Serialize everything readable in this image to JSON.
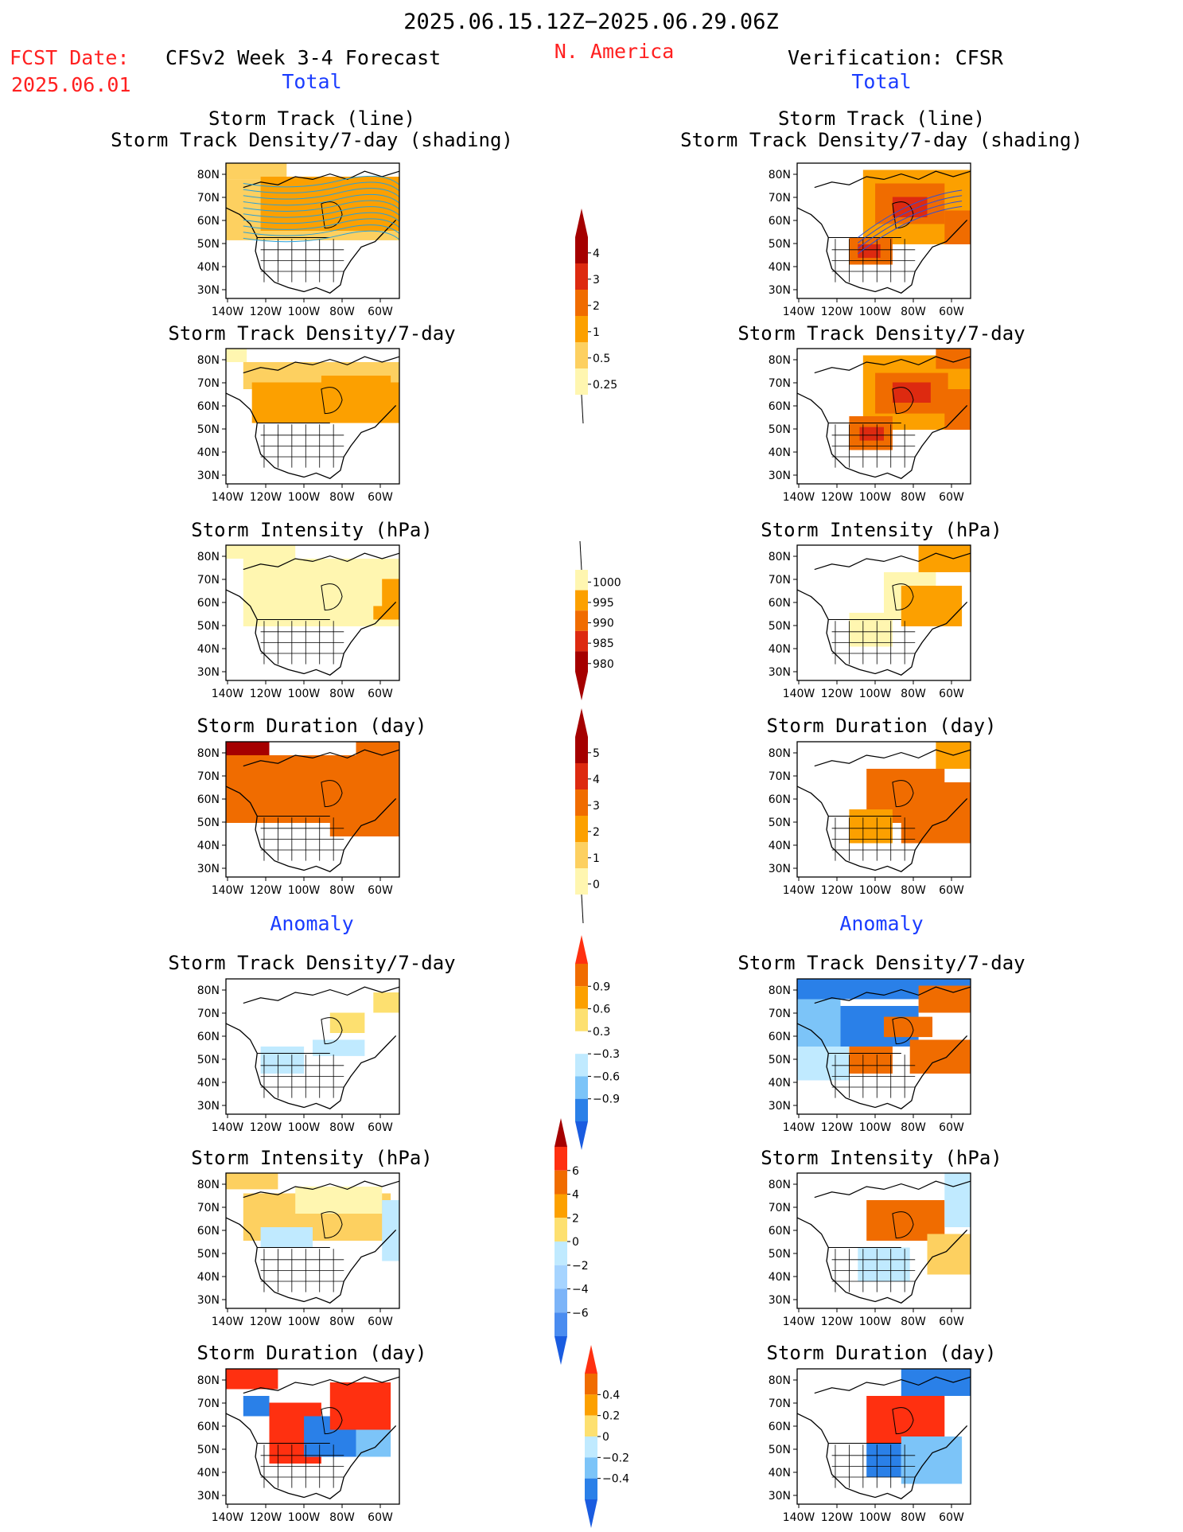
{
  "header": {
    "date_range": "2025.06.15.12Z−2025.06.29.06Z",
    "fcst_label": "FCST Date:",
    "fcst_date": "2025.06.01",
    "model_title": "CFSv2 Week 3-4 Forecast",
    "region": "N. America",
    "verification": "Verification: CFSR"
  },
  "sections": {
    "total": "Total",
    "anomaly": "Anomaly"
  },
  "axes": {
    "lat_ticks": [
      "80N",
      "70N",
      "60N",
      "50N",
      "40N",
      "30N"
    ],
    "lon_ticks": [
      "140W",
      "120W",
      "100W",
      "80W",
      "60W"
    ]
  },
  "panels": [
    {
      "row": 0,
      "title1": "Storm Track (line)",
      "title2": "Storm Track Density/7-day (shading)"
    },
    {
      "row": 1,
      "title1": "Storm Track Density/7-day",
      "title2": ""
    },
    {
      "row": 2,
      "title1": "Storm Intensity (hPa)",
      "title2": ""
    },
    {
      "row": 3,
      "title1": "Storm Duration (day)",
      "title2": ""
    },
    {
      "row": 4,
      "title1": "Storm Track Density/7-day",
      "title2": ""
    },
    {
      "row": 5,
      "title1": "Storm Intensity (hPa)",
      "title2": ""
    },
    {
      "row": 6,
      "title1": "Storm Duration (day)",
      "title2": ""
    }
  ],
  "colorbars": [
    {
      "name": "density-total",
      "labels": [
        "4",
        "3",
        "2",
        "1",
        "0.5",
        "0.25"
      ],
      "colors": [
        "#a50000",
        "#dd2a10",
        "#f06c00",
        "#fca000",
        "#fdd060",
        "#fff6b0"
      ],
      "arrow_top": "#a50000",
      "arrow_bottom": "none"
    },
    {
      "name": "intensity-total",
      "labels": [
        "1000",
        "995",
        "990",
        "985",
        "980"
      ],
      "colors": [
        "#fff6b0",
        "#fca000",
        "#f06c00",
        "#dd2a10",
        "#a50000"
      ],
      "arrow_top": "none",
      "arrow_bottom": "#a50000"
    },
    {
      "name": "duration-total",
      "labels": [
        "5",
        "4",
        "3",
        "2",
        "1",
        "0"
      ],
      "colors": [
        "#a50000",
        "#dd2a10",
        "#f06c00",
        "#fca000",
        "#fdd060",
        "#fff6b0"
      ],
      "arrow_top": "#a50000",
      "arrow_bottom": "none"
    },
    {
      "name": "density-anom",
      "labels": [
        "0.9",
        "0.6",
        "0.3",
        "−0.3",
        "−0.6",
        "−0.9"
      ],
      "colors": [
        "#f06c00",
        "#fca000",
        "#fde070",
        "#ffffff",
        "#c0eaff",
        "#7cc4f8",
        "#2a80e8"
      ],
      "arrow_top": "#ff3010",
      "arrow_bottom": "#1a5ce0"
    },
    {
      "name": "intensity-anom",
      "labels": [
        "6",
        "4",
        "2",
        "0",
        "−2",
        "−4",
        "−6"
      ],
      "colors": [
        "#ff3010",
        "#f06c00",
        "#fca000",
        "#fde070",
        "#c0eaff",
        "#a6d4ff",
        "#7cb4f8",
        "#4a8cf0"
      ],
      "arrow_top": "#a50000",
      "arrow_bottom": "#1a5ce0"
    },
    {
      "name": "duration-anom",
      "labels": [
        "0.4",
        "0.2",
        "0",
        "−0.2",
        "−0.4"
      ],
      "colors": [
        "#f06c00",
        "#fca000",
        "#fde070",
        "#c0eaff",
        "#7cc4f8",
        "#2a80e8"
      ],
      "arrow_top": "#ff3010",
      "arrow_bottom": "#1a5ce0"
    }
  ],
  "colors": {
    "label_red": "#ff2020",
    "label_blue": "#1a3cff"
  }
}
